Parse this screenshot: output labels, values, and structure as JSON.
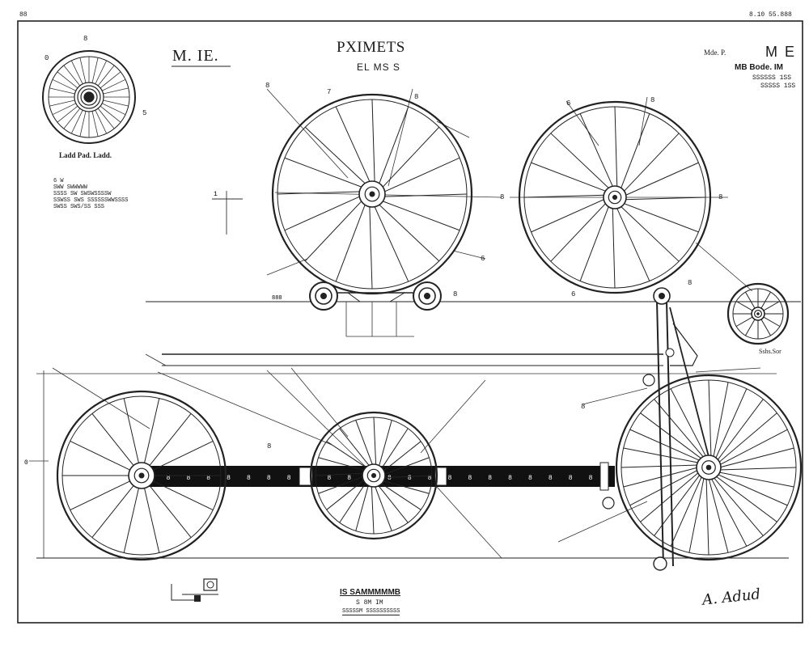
{
  "sheet": {
    "corner_left": "88",
    "corner_right": "8.10   55.888",
    "title": "PXIMETS",
    "subtitle": "EL MS S",
    "label_left": "M. IE.",
    "hub_label": "Ladd Pad. Ladd.",
    "notes": [
      "6 W",
      "SWW SWWWWW",
      "SSSS SW SWSWSSSSW",
      "SSWSS SWS SSSSSSWWSSSS",
      "SWSS SWS/SS  SSS"
    ],
    "right_block": [
      "Mde. P.",
      "M E",
      "MB Bode. IM",
      "SSSSSS 1SS",
      "SSSSS 1SS"
    ],
    "section_label": "Sshs.Sor",
    "bottom_block": [
      "IS SAMMMMMB",
      "S 8M IM",
      "SSSSSM SSSSSSSSSS"
    ],
    "signature": "A. Adud"
  },
  "strip_marks": [
    "8",
    "8",
    "8",
    "8",
    "8",
    "8",
    "8",
    "8",
    "8",
    "8",
    "8",
    "8",
    "8",
    "8",
    "8",
    "8",
    "8",
    "8",
    "8",
    "8",
    "8",
    "8"
  ],
  "callouts": [
    "0",
    "8",
    "5",
    "6",
    "8",
    "7",
    "8",
    "6",
    "8",
    "8",
    "8",
    "8",
    "6",
    "8",
    "8",
    "8"
  ]
}
